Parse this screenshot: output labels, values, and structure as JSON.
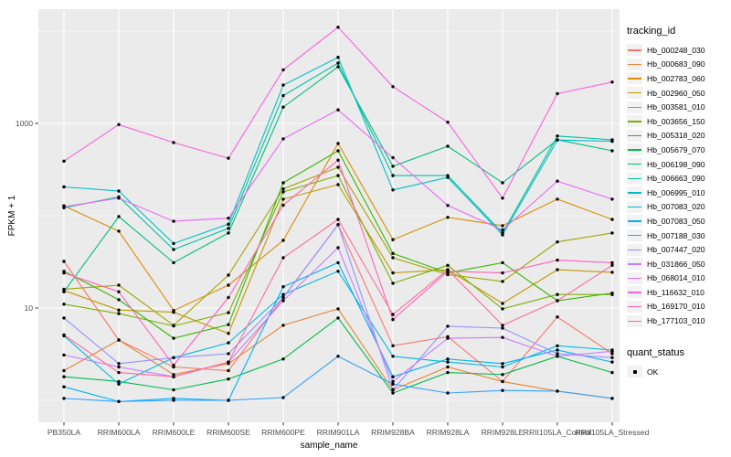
{
  "figure": {
    "background": "#FFFFFF",
    "panel_background": "#EBEBEB",
    "gridline_color": "#FFFFFF",
    "tick_mark_color": "#333333",
    "axis_text_color": "#4D4D4D",
    "axis_title_color": "#000000",
    "point_color": "#000000",
    "legend_key_background": "#F2F2F2"
  },
  "legend": {
    "color_legend_title": "tracking_id",
    "shape_legend_title": "quant_status",
    "shape_legend_label": "OK"
  },
  "chart_data": {
    "type": "line",
    "xlabel": "sample_name",
    "ylabel": "FPKM + 1",
    "yscale": "log10",
    "legend_position": "right",
    "x_categories": [
      "PB350LA",
      "RRIM600LA",
      "RRIM600LE",
      "RRIM600SE",
      "RRIM600PE",
      "RRIM901LA",
      "RRIM928BA",
      "RRIM928LA",
      "RRIM928LE",
      "RRII105LA_Control",
      "RRII105LA_Stressed"
    ],
    "ytick_values": [
      1000,
      10
    ],
    "ytick_labels": [
      "1000",
      "10"
    ],
    "major_gridline_values": [
      1000,
      10
    ],
    "minor_gridline_values": [
      10000,
      100,
      1
    ],
    "ylim_log": [
      0.58,
      17000
    ],
    "series": [
      {
        "name": "Hb_000248_030",
        "color": "#F8766D",
        "values": [
          32,
          4.5,
          2.3,
          2.1,
          13,
          80,
          3.9,
          4.9,
          1.6,
          8.0,
          3.2
        ]
      },
      {
        "name": "Hb_000683_090",
        "color": "#EA8331",
        "values": [
          2.1,
          4.5,
          1.9,
          2.5,
          6.5,
          9.8,
          1.3,
          2.3,
          1.6,
          1.26,
          1.05
        ]
      },
      {
        "name": "Hb_002783_060",
        "color": "#D89000",
        "values": [
          128,
          68,
          9.4,
          17.7,
          54,
          605,
          55,
          96,
          78,
          151,
          91
        ]
      },
      {
        "name": "Hb_002960_050",
        "color": "#C09B00",
        "values": [
          15.5,
          9.5,
          9.0,
          5.3,
          151,
          217,
          24,
          26,
          11.2,
          26,
          24.4
        ]
      },
      {
        "name": "Hb_003581_010",
        "color": "#A3A500",
        "values": [
          16,
          17.7,
          6.5,
          22.7,
          195,
          335,
          35,
          23,
          19.4,
          52,
          65
        ]
      },
      {
        "name": "Hb_003656_150",
        "color": "#7CAE00",
        "values": [
          11,
          8.7,
          6.4,
          8.9,
          181,
          272,
          18.5,
          29,
          9.8,
          14,
          14
        ]
      },
      {
        "name": "Hb_005318_020",
        "color": "#39B600",
        "values": [
          25,
          12.3,
          4.7,
          6.6,
          227,
          505,
          39,
          24,
          31,
          12,
          14.5
        ]
      },
      {
        "name": "Hb_005679_070",
        "color": "#00BB4E",
        "values": [
          1.8,
          1.6,
          1.3,
          1.7,
          2.8,
          7.8,
          1.2,
          2.0,
          1.9,
          3.0,
          2.0
        ]
      },
      {
        "name": "Hb_006198_090",
        "color": "#00BF7D",
        "values": [
          15,
          98,
          31,
          65,
          1500,
          4100,
          343,
          565,
          227,
          665,
          505
        ]
      },
      {
        "name": "Hb_006663_090",
        "color": "#00C1A3",
        "values": [
          122,
          160,
          43,
          73,
          2000,
          4500,
          272,
          272,
          65,
          730,
          665
        ]
      },
      {
        "name": "Hb_006995_010",
        "color": "#00BFC4",
        "values": [
          205,
          185,
          50,
          81,
          2600,
          5200,
          190,
          260,
          62,
          660,
          640
        ]
      },
      {
        "name": "Hb_007083_020",
        "color": "#00BAE0",
        "values": [
          5.0,
          1.5,
          2.9,
          4.2,
          14,
          25,
          3.0,
          2.6,
          2.3,
          3.9,
          3.5
        ]
      },
      {
        "name": "Hb_007083_050",
        "color": "#00B0F6",
        "values": [
          1.4,
          0.97,
          1.05,
          1.0,
          17,
          31,
          1.8,
          2.8,
          2.5,
          3.5,
          2.6
        ]
      },
      {
        "name": "Hb_007188_030",
        "color": "#35A2FF",
        "values": [
          1.05,
          0.97,
          1.0,
          1.0,
          1.07,
          3.0,
          1.5,
          1.2,
          1.28,
          1.26,
          1.05
        ]
      },
      {
        "name": "Hb_007447_020",
        "color": "#9590FF",
        "values": [
          7.8,
          2.5,
          2.9,
          3.2,
          13,
          80,
          1.3,
          6.35,
          6.05,
          3.2,
          2.9
        ]
      },
      {
        "name": "Hb_031866_050",
        "color": "#C77CFF",
        "values": [
          3.1,
          2.3,
          1.8,
          2.6,
          12,
          45,
          1.6,
          4.7,
          4.8,
          3.0,
          3.4
        ]
      },
      {
        "name": "Hb_068014_010",
        "color": "#E76BF3",
        "values": [
          125,
          155,
          87,
          94,
          680,
          1400,
          425,
          129,
          70,
          237,
          151
        ]
      },
      {
        "name": "Hb_116632_010",
        "color": "#FA62DB",
        "values": [
          390,
          970,
          620,
          420,
          3800,
          11000,
          2500,
          1030,
          155,
          2100,
          2800
        ]
      },
      {
        "name": "Hb_169170_010",
        "color": "#FF62BC",
        "values": [
          24,
          15,
          2.4,
          13,
          130,
          400,
          7.5,
          25,
          24,
          33,
          31
        ]
      },
      {
        "name": "Hb_177103_010",
        "color": "#FF6A98",
        "values": [
          5.1,
          2.0,
          1.8,
          2.6,
          35,
          91,
          8.5,
          26,
          6.5,
          12,
          29
        ]
      }
    ]
  }
}
